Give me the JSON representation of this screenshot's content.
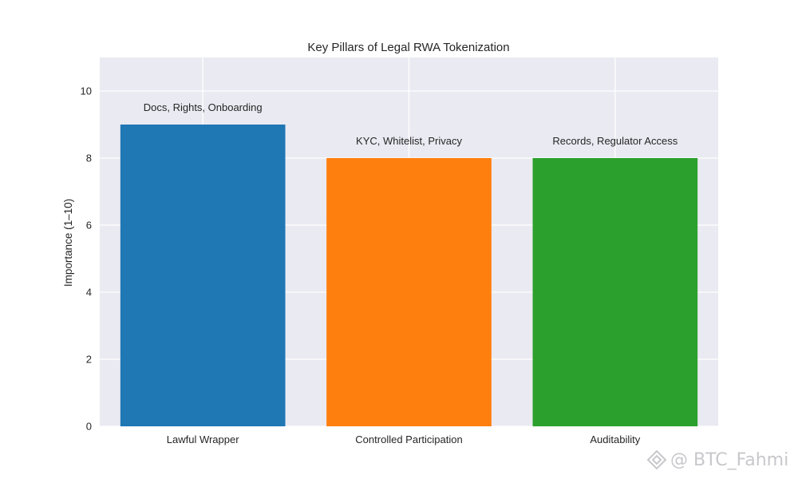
{
  "chart_data": {
    "type": "bar",
    "title": "Key Pillars of Legal RWA Tokenization",
    "xlabel": "",
    "ylabel": "Importance (1–10)",
    "categories": [
      "Lawful Wrapper",
      "Controlled Participation",
      "Auditability"
    ],
    "values": [
      9,
      8,
      8
    ],
    "annotations": [
      "Docs, Rights, Onboarding",
      "KYC, Whitelist, Privacy",
      "Records, Regulator Access"
    ],
    "colors": [
      "#1f77b4",
      "#ff7f0e",
      "#2ca02c"
    ],
    "ylim": [
      0,
      11
    ],
    "yticks": [
      0,
      2,
      4,
      6,
      8,
      10
    ],
    "grid": true,
    "background": "#eaeaf2"
  },
  "watermark": {
    "text": "@ BTC_Fahmi",
    "icon": "diamond-logo-icon"
  }
}
